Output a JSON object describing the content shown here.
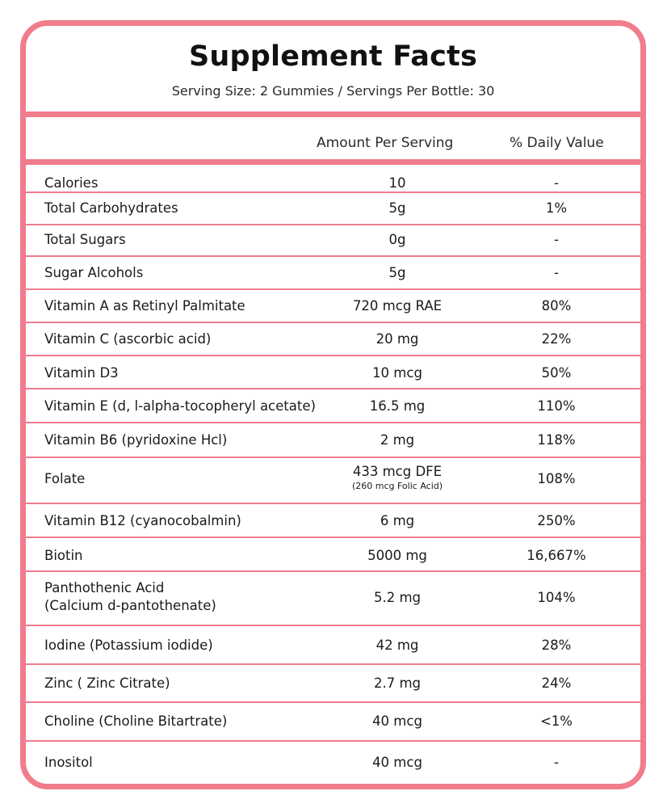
{
  "panel": {
    "title": "Supplement Facts",
    "serving_info": "Serving Size: 2 Gummies / Servings Per Bottle: 30"
  },
  "columns": {
    "amount": "Amount Per Serving",
    "daily_value": "% Daily Value"
  },
  "rows": [
    {
      "name": "Calories",
      "amount": "10",
      "amount_note": "",
      "dv": "-"
    },
    {
      "name": "Total Carbohydrates",
      "amount": "5g",
      "amount_note": "",
      "dv": "1%"
    },
    {
      "name": "Total Sugars",
      "amount": "0g",
      "amount_note": "",
      "dv": "-"
    },
    {
      "name": "Sugar Alcohols",
      "amount": "5g",
      "amount_note": "",
      "dv": "-"
    },
    {
      "name": "Vitamin A as Retinyl Palmitate",
      "amount": "720 mcg RAE",
      "amount_note": "",
      "dv": "80%"
    },
    {
      "name": "Vitamin C (ascorbic acid)",
      "amount": "20 mg",
      "amount_note": "",
      "dv": "22%"
    },
    {
      "name": "Vitamin D3",
      "amount": "10 mcg",
      "amount_note": "",
      "dv": "50%"
    },
    {
      "name": "Vitamin E (d, l-alpha-tocopheryl acetate)",
      "amount": "16.5 mg",
      "amount_note": "",
      "dv": "110%"
    },
    {
      "name": "Vitamin B6 (pyridoxine Hcl)",
      "amount": "2 mg",
      "amount_note": "",
      "dv": "118%"
    },
    {
      "name": "Folate",
      "amount": "433 mcg DFE",
      "amount_note": "(260 mcg Folic Acid)",
      "dv": "108%"
    },
    {
      "name": "Vitamin B12 (cyanocobalmin)",
      "amount": "6 mg",
      "amount_note": "",
      "dv": "250%"
    },
    {
      "name": "Biotin",
      "amount": "5000 mg",
      "amount_note": "",
      "dv": "16,667%"
    },
    {
      "name": "Panthothenic Acid",
      "name_line2": "(Calcium d-pantothenate)",
      "amount": "5.2 mg",
      "amount_note": "",
      "dv": "104%"
    },
    {
      "name": "Iodine (Potassium iodide)",
      "amount": "42 mg",
      "amount_note": "",
      "dv": "28%"
    },
    {
      "name": "Zinc ( Zinc Citrate)",
      "amount": "2.7 mg",
      "amount_note": "",
      "dv": "24%"
    },
    {
      "name": "Choline (Choline Bitartrate)",
      "amount": "40 mcg",
      "amount_note": "",
      "dv": "<1%"
    },
    {
      "name": "Inositol",
      "amount": "40 mcg",
      "amount_note": "",
      "dv": "-"
    }
  ],
  "colors": {
    "border": "#f07c8c",
    "text": "#1a1a1a"
  }
}
